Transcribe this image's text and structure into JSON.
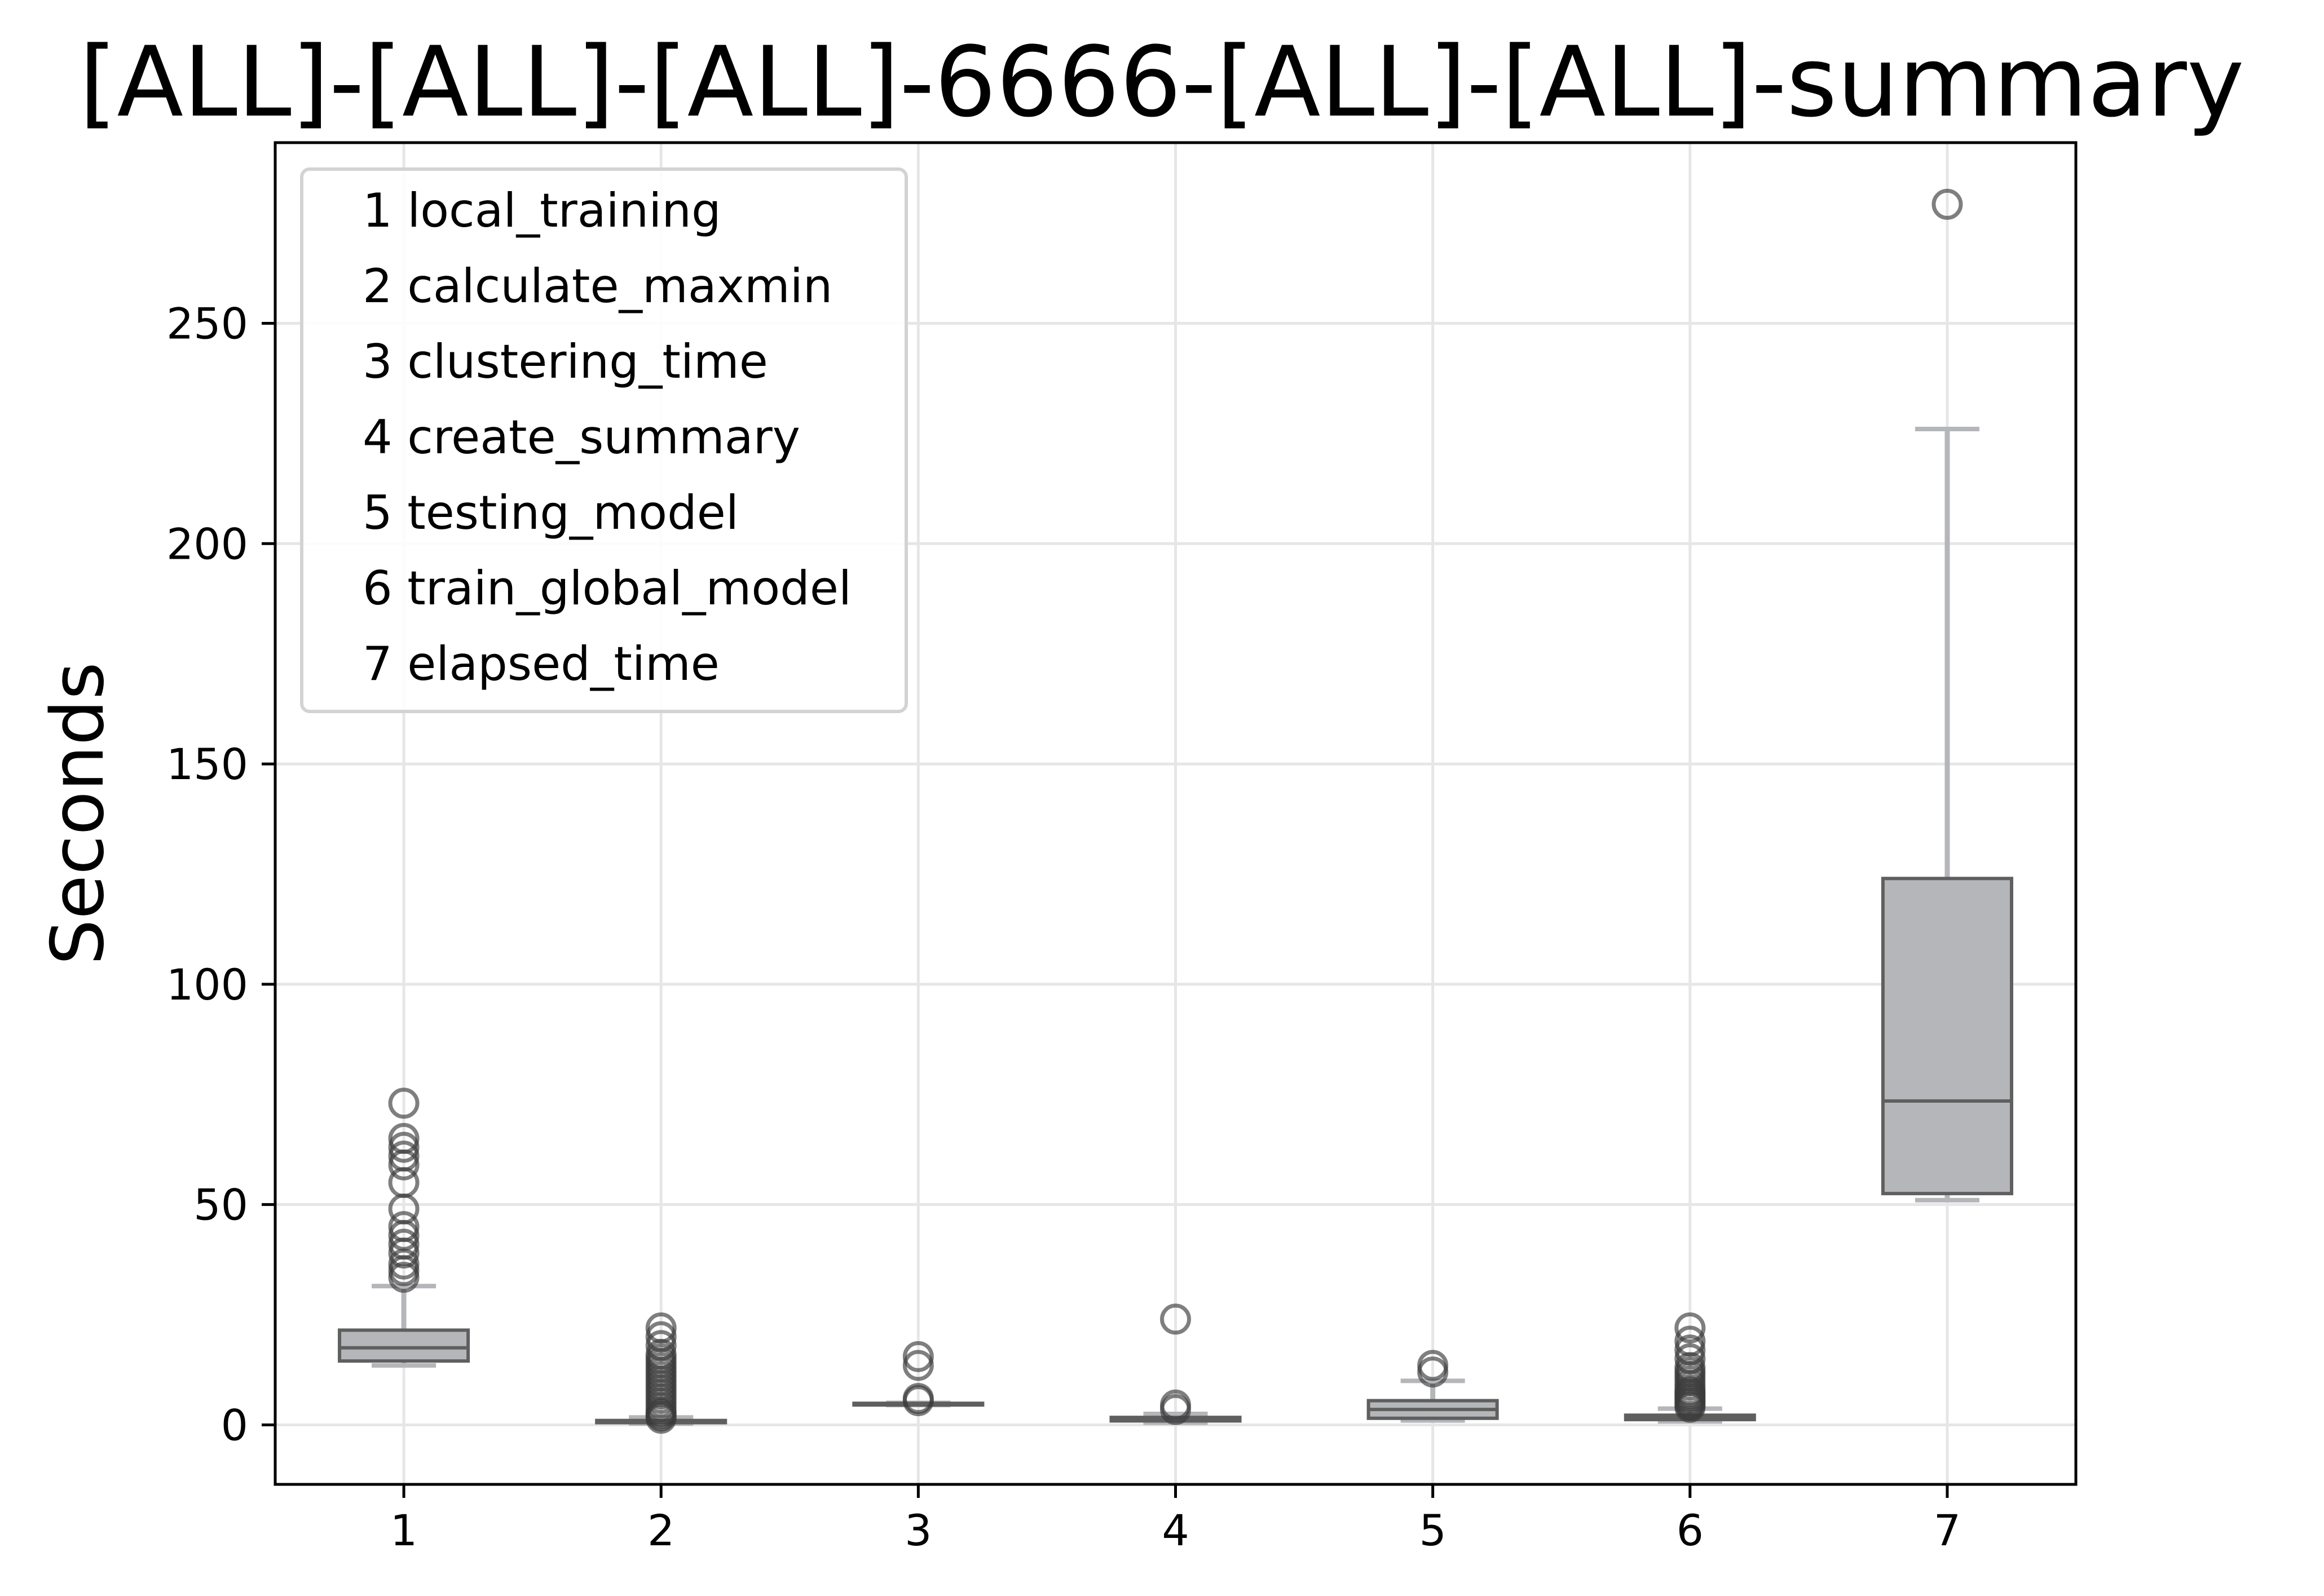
{
  "chart_data": {
    "type": "box",
    "title": "[ALL]-[ALL]-[ALL]-6666-[ALL]-[ALL]-summary",
    "xlabel": "",
    "ylabel": "Seconds",
    "xlim": [
      0.5,
      7.5
    ],
    "ylim": [
      -13.5,
      291
    ],
    "yticks": [
      0,
      50,
      100,
      150,
      200,
      250
    ],
    "grid": true,
    "legend_position": "top-left",
    "box_color": "#b4b6ba",
    "box_edge_color": "#5f5f5f",
    "whisker_color": "#b4b6ba",
    "outlier_color": "#3a3a3a",
    "categories": [
      "1",
      "2",
      "3",
      "4",
      "5",
      "6",
      "7"
    ],
    "legend": [
      "1 local_training",
      "2 calculate_maxmin",
      "3 clustering_time",
      "4 create_summary",
      "5 testing_model",
      "6 train_global_model",
      "7 elapsed_time"
    ],
    "boxes": [
      {
        "x": 1,
        "whislo": 13.5,
        "q1": 14.5,
        "med": 17.5,
        "q3": 21.5,
        "whishi": 31.5,
        "fliers": [
          33.5,
          35,
          36.5,
          39,
          41,
          43,
          45,
          49,
          55,
          59,
          61,
          63,
          65,
          73
        ]
      },
      {
        "x": 2,
        "whislo": 0.3,
        "q1": 0.5,
        "med": 0.8,
        "q3": 1.0,
        "whishi": 1.7,
        "fliers": [
          1.5,
          2,
          2.5,
          3,
          4,
          5,
          6,
          7,
          8,
          9,
          10,
          11,
          12,
          13,
          14,
          15,
          16,
          18,
          20,
          22
        ]
      },
      {
        "x": 3,
        "whislo": 4.5,
        "q1": 4.6,
        "med": 4.7,
        "q3": 4.9,
        "whishi": 5.0,
        "fliers": [
          5.5,
          6,
          13.5,
          15.5
        ]
      },
      {
        "x": 4,
        "whislo": 0.5,
        "q1": 0.9,
        "med": 1.3,
        "q3": 1.7,
        "whishi": 2.5,
        "fliers": [
          3.5,
          4.5,
          24
        ]
      },
      {
        "x": 5,
        "whislo": 1.0,
        "q1": 1.5,
        "med": 3.5,
        "q3": 5.5,
        "whishi": 10,
        "fliers": [
          12,
          13.5
        ]
      },
      {
        "x": 6,
        "whislo": 0.8,
        "q1": 1.2,
        "med": 1.6,
        "q3": 2.2,
        "whishi": 3.7,
        "fliers": [
          4,
          4.5,
          5,
          5.5,
          6,
          6.5,
          7,
          7.5,
          8,
          9,
          10,
          11,
          12,
          13,
          15,
          17,
          19,
          22
        ]
      },
      {
        "x": 7,
        "whislo": 51,
        "q1": 52.5,
        "med": 73.5,
        "q3": 124,
        "whishi": 226,
        "fliers": [
          277
        ]
      }
    ]
  }
}
